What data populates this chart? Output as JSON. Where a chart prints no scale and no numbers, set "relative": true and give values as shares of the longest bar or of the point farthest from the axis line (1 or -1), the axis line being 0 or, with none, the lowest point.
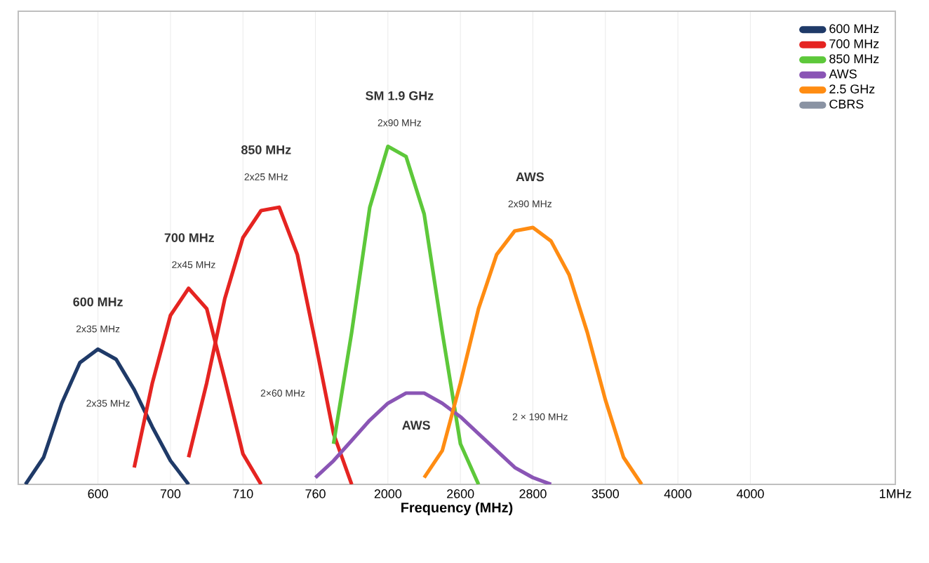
{
  "chart_data": {
    "type": "line",
    "relative": true,
    "xlabel": "Frequency (MHz)",
    "grid": "x",
    "legend": "top right",
    "line_style": "solid",
    "marker": "none",
    "categories": [
      null,
      null,
      null,
      null,
      "600",
      null,
      null,
      null,
      "700",
      null,
      null,
      null,
      "710",
      null,
      null,
      null,
      "760",
      null,
      null,
      null,
      "2000",
      null,
      null,
      null,
      "2600",
      null,
      null,
      null,
      "2800",
      null,
      null,
      null,
      "3500",
      null,
      null,
      null,
      "4000",
      null,
      null,
      null,
      "4000",
      null,
      null,
      null,
      null,
      null,
      null,
      null,
      "1MHz"
    ],
    "series": [
      {
        "name": "600 MHz",
        "color": "#1f3a68",
        "values": [
          0,
          0.08,
          0.24,
          0.36,
          0.4,
          0.37,
          0.28,
          0.17,
          0.07,
          0,
          null,
          null,
          null,
          null,
          null,
          null,
          null,
          null,
          null,
          null,
          null,
          null,
          null,
          null,
          null,
          null,
          null,
          null,
          null,
          null,
          null,
          null,
          null,
          null,
          null,
          null,
          null,
          null,
          null,
          null,
          null,
          null,
          null,
          null,
          null,
          null,
          null,
          null,
          null
        ]
      },
      {
        "name": "700 MHz",
        "color": "#e52421",
        "values": [
          null,
          null,
          null,
          null,
          null,
          null,
          0.05,
          0.3,
          0.5,
          0.58,
          0.52,
          0.31,
          0.09,
          0,
          null,
          null,
          null,
          null,
          null,
          null,
          null,
          null,
          null,
          null,
          null,
          null,
          null,
          null,
          null,
          null,
          null,
          null,
          null,
          null,
          null,
          null,
          null,
          null,
          null,
          null,
          null,
          null,
          null,
          null,
          null,
          null,
          null,
          null,
          null
        ]
      },
      {
        "color": "#e52421",
        "values": [
          null,
          null,
          null,
          null,
          null,
          null,
          null,
          null,
          null,
          0.08,
          0.3,
          0.55,
          0.73,
          0.81,
          0.82,
          0.68,
          0.42,
          0.15,
          0,
          null,
          null,
          null,
          null,
          null,
          null,
          null,
          null,
          null,
          null,
          null,
          null,
          null,
          null,
          null,
          null,
          null,
          null,
          null,
          null,
          null,
          null,
          null,
          null,
          null,
          null,
          null,
          null,
          null,
          null
        ]
      },
      {
        "name": "850 MHz",
        "color": "#5dc83a",
        "values": [
          null,
          null,
          null,
          null,
          null,
          null,
          null,
          null,
          null,
          null,
          null,
          null,
          null,
          null,
          null,
          null,
          null,
          0.12,
          0.45,
          0.82,
          1,
          0.97,
          0.8,
          0.45,
          0.12,
          0,
          null,
          null,
          null,
          null,
          null,
          null,
          null,
          null,
          null,
          null,
          null,
          null,
          null,
          null,
          null,
          null,
          null,
          null,
          null,
          null,
          null,
          null,
          null
        ]
      },
      {
        "name": "AWS",
        "color": "#8a55b5",
        "values": [
          null,
          null,
          null,
          null,
          null,
          null,
          null,
          null,
          null,
          null,
          null,
          null,
          null,
          null,
          null,
          null,
          0.02,
          0.07,
          0.13,
          0.19,
          0.24,
          0.27,
          0.27,
          0.24,
          0.2,
          0.15,
          0.1,
          0.05,
          0.02,
          0,
          null,
          null,
          null,
          null,
          null,
          null,
          null,
          null,
          null,
          null,
          null,
          null,
          null,
          null,
          null,
          null,
          null,
          null,
          null
        ]
      },
      {
        "name": "2.5 GHz",
        "color": "#ff8c12",
        "values": [
          null,
          null,
          null,
          null,
          null,
          null,
          null,
          null,
          null,
          null,
          null,
          null,
          null,
          null,
          null,
          null,
          null,
          null,
          null,
          null,
          null,
          null,
          0.02,
          0.1,
          0.3,
          0.52,
          0.68,
          0.75,
          0.76,
          0.72,
          0.62,
          0.45,
          0.25,
          0.08,
          0,
          null,
          null,
          null,
          null,
          null,
          null,
          null,
          null,
          null,
          null,
          null,
          null,
          null,
          null
        ]
      },
      {
        "name": "CBRS",
        "color": "#8a93a3",
        "values": [
          null,
          null,
          null,
          null,
          null,
          null,
          null,
          null,
          null,
          null,
          null,
          null,
          null,
          null,
          null,
          null,
          null,
          null,
          null,
          null,
          null,
          null,
          null,
          null,
          null,
          null,
          null,
          null,
          null,
          null,
          null,
          null,
          null,
          null,
          null,
          null,
          null,
          null,
          null,
          null,
          null,
          null,
          null,
          null,
          null,
          null,
          null,
          null,
          null
        ]
      }
    ],
    "annotations": [
      "600 MHz",
      "2x35 MHz",
      "700 MHz",
      "2x45 MHz",
      "850 MHz",
      "2x25 MHz",
      "SM 1.9 GHz",
      "2x90 MHz",
      "AWS",
      "2x90 MHz",
      "2x35 MHz",
      "2×60 MHz",
      "AWS",
      "2 × 190 MHz"
    ]
  }
}
